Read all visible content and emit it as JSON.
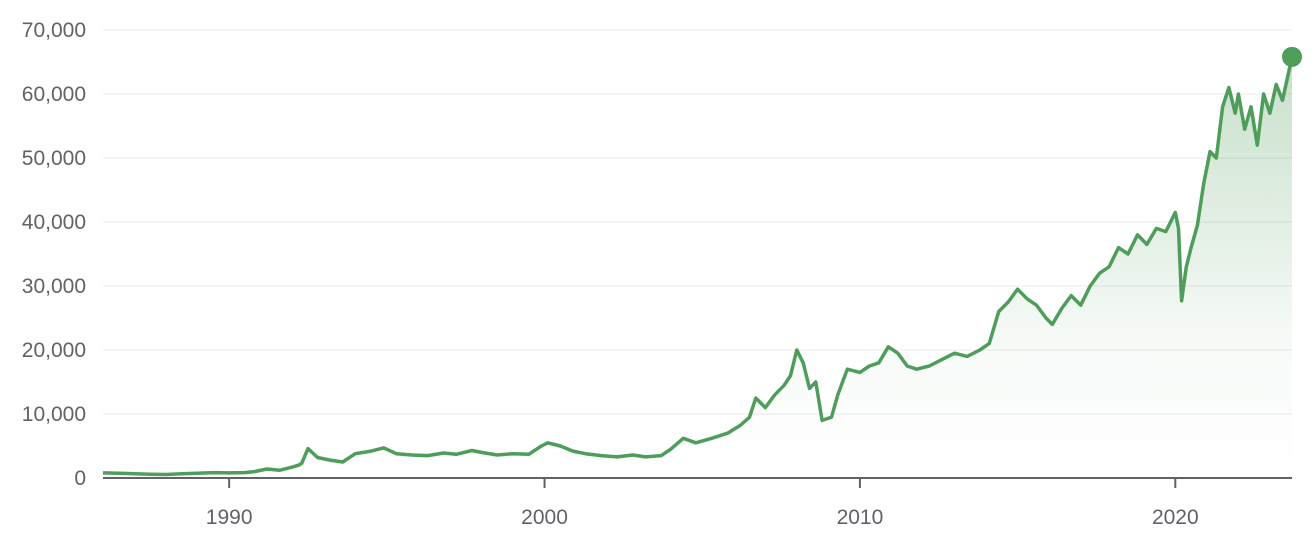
{
  "chart_data": {
    "type": "area",
    "title": "",
    "xlabel": "",
    "ylabel": "",
    "xlim": [
      1986.0,
      2023.7
    ],
    "ylim": [
      0,
      70000
    ],
    "grid": true,
    "line_color": "#4f9d5a",
    "fill_color": "#4f9d5a",
    "y_ticks": [
      {
        "value": 0,
        "label": "0"
      },
      {
        "value": 10000,
        "label": "10,000"
      },
      {
        "value": 20000,
        "label": "20,000"
      },
      {
        "value": 30000,
        "label": "30,000"
      },
      {
        "value": 40000,
        "label": "40,000"
      },
      {
        "value": 50000,
        "label": "50,000"
      },
      {
        "value": 60000,
        "label": "60,000"
      },
      {
        "value": 70000,
        "label": "70,000"
      }
    ],
    "x_ticks": [
      {
        "value": 1990,
        "label": "1990"
      },
      {
        "value": 2000,
        "label": "2000"
      },
      {
        "value": 2010,
        "label": "2010"
      },
      {
        "value": 2020,
        "label": "2020"
      }
    ],
    "series": [
      {
        "x": [
          1986.0,
          1986.5,
          1987.0,
          1987.5,
          1988.0,
          1988.5,
          1989.0,
          1989.5,
          1990.0,
          1990.5,
          1990.8,
          1991.2,
          1991.6,
          1992.0,
          1992.2,
          1992.3,
          1992.5,
          1992.8,
          1993.2,
          1993.6,
          1994.0,
          1994.5,
          1994.9,
          1995.3,
          1995.8,
          1996.3,
          1996.8,
          1997.2,
          1997.7,
          1998.0,
          1998.5,
          1999.0,
          1999.5,
          1999.9,
          2000.1,
          2000.5,
          2000.9,
          2001.3,
          2001.8,
          2002.3,
          2002.8,
          2003.2,
          2003.7,
          2004.0,
          2004.4,
          2004.8,
          2005.3,
          2005.8,
          2006.2,
          2006.5,
          2006.7,
          2007.0,
          2007.3,
          2007.6,
          2007.8,
          2008.0,
          2008.2,
          2008.4,
          2008.6,
          2008.8,
          2009.1,
          2009.3,
          2009.6,
          2010.0,
          2010.3,
          2010.6,
          2010.9,
          2011.2,
          2011.5,
          2011.8,
          2012.2,
          2012.6,
          2013.0,
          2013.4,
          2013.8,
          2014.1,
          2014.4,
          2014.7,
          2015.0,
          2015.3,
          2015.6,
          2015.9,
          2016.1,
          2016.4,
          2016.7,
          2017.0,
          2017.3,
          2017.6,
          2017.9,
          2018.2,
          2018.5,
          2018.8,
          2019.1,
          2019.4,
          2019.7,
          2020.0,
          2020.1,
          2020.2,
          2020.35,
          2020.5,
          2020.7,
          2020.9,
          2021.1,
          2021.3,
          2021.5,
          2021.7,
          2021.9,
          2022.0,
          2022.2,
          2022.4,
          2022.6,
          2022.8,
          2023.0,
          2023.2,
          2023.4,
          2023.7
        ],
        "y": [
          800,
          750,
          650,
          600,
          550,
          650,
          750,
          850,
          800,
          850,
          1000,
          1400,
          1200,
          1700,
          2000,
          2300,
          4600,
          3200,
          2800,
          2500,
          3800,
          4200,
          4700,
          3800,
          3600,
          3500,
          3900,
          3700,
          4300,
          4000,
          3600,
          3800,
          3700,
          5000,
          5500,
          5000,
          4200,
          3800,
          3500,
          3300,
          3600,
          3300,
          3500,
          4500,
          6200,
          5500,
          6200,
          7000,
          8200,
          9500,
          12500,
          11000,
          13000,
          14500,
          16000,
          20000,
          18000,
          14000,
          15000,
          9000,
          9500,
          13000,
          17000,
          16500,
          17500,
          18000,
          20500,
          19500,
          17500,
          17000,
          17500,
          18500,
          19500,
          19000,
          20000,
          21000,
          26000,
          27500,
          29500,
          28000,
          27000,
          25000,
          24000,
          26500,
          28500,
          27000,
          30000,
          32000,
          33000,
          36000,
          35000,
          38000,
          36500,
          39000,
          38500,
          41500,
          39000,
          27700,
          33000,
          36000,
          39500,
          46000,
          51000,
          50000,
          58000,
          61000,
          57000,
          60000,
          54500,
          58000,
          52000,
          60000,
          57000,
          61500,
          59000,
          65800
        ]
      }
    ],
    "end_marker": {
      "x": 2023.7,
      "y": 65800
    }
  }
}
